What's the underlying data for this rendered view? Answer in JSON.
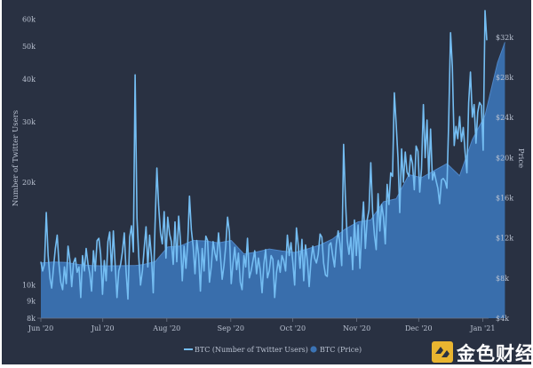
{
  "chart_data": {
    "type": "line",
    "title": "",
    "xlabel": "",
    "ylabel_left": "Number of Twitter Users",
    "ylabel_right": "Price",
    "x_tick_labels": [
      "Jun '20",
      "Jul '20",
      "Aug '20",
      "Sep '20",
      "Oct '20",
      "Nov '20",
      "Dec '20",
      "Jan '21"
    ],
    "left_axis": {
      "scale": "log",
      "ylim": [
        8000,
        65000
      ],
      "ticks": [
        8000,
        9000,
        10000,
        20000,
        30000,
        40000,
        50000,
        60000
      ],
      "tick_labels": [
        "8k",
        "9k",
        "10k",
        "20k",
        "30k",
        "40k",
        "50k",
        "60k"
      ]
    },
    "right_axis": {
      "scale": "linear",
      "ylim": [
        4000,
        35000
      ],
      "ticks": [
        4000,
        8000,
        12000,
        16000,
        20000,
        24000,
        28000,
        32000
      ],
      "tick_labels": [
        "$4k",
        "$8k",
        "$12k",
        "$16k",
        "$20k",
        "$24k",
        "$28k",
        "$32k"
      ]
    },
    "series": [
      {
        "name": "BTC (Number of Twitter Users)",
        "axis": "left",
        "style": "line",
        "color": "#74bdf2",
        "values": [
          11700,
          11000,
          11500,
          16300,
          12200,
          10500,
          9800,
          11300,
          12800,
          14000,
          11500,
          10200,
          9700,
          11300,
          10100,
          13000,
          11800,
          9900,
          11600,
          12000,
          10900,
          11300,
          9200,
          12200,
          11000,
          12800,
          11500,
          10800,
          9600,
          12600,
          11000,
          13500,
          13700,
          12300,
          9400,
          11800,
          10300,
          13400,
          14300,
          11000,
          14400,
          11400,
          9200,
          11000,
          11500,
          12500,
          14200,
          11000,
          9100,
          13800,
          14900,
          12500,
          41200,
          15700,
          12100,
          10000,
          11000,
          12800,
          14800,
          11300,
          14000,
          12100,
          9500,
          15200,
          22000,
          17000,
          14200,
          13200,
          16400,
          12000,
          15800,
          14100,
          13400,
          11500,
          15300,
          11700,
          15900,
          13500,
          10300,
          13000,
          11200,
          13200,
          18200,
          14500,
          13000,
          10800,
          13500,
          12300,
          9600,
          12800,
          11000,
          13900,
          13500,
          10200,
          11300,
          13400,
          12400,
          11800,
          14200,
          12300,
          10400,
          11400,
          13000,
          15800,
          14300,
          10100,
          11600,
          12900,
          11100,
          12400,
          10200,
          9700,
          12200,
          11300,
          13700,
          10500,
          11000,
          11800,
          12600,
          10800,
          12000,
          11100,
          9500,
          11500,
          12700,
          10500,
          11000,
          12200,
          11900,
          9200,
          10900,
          11800,
          10900,
          12200,
          11800,
          11000,
          14000,
          12200,
          13300,
          11600,
          10000,
          14700,
          13000,
          11200,
          13600,
          10300,
          13100,
          11800,
          9900,
          11800,
          13000,
          12000,
          11600,
          12300,
          14100,
          13800,
          11600,
          10700,
          10600,
          13100,
          13300,
          12200,
          11300,
          13200,
          14400,
          13200,
          11400,
          25800,
          18000,
          13500,
          12300,
          13800,
          11100,
          15500,
          12200,
          15000,
          11200,
          14500,
          17500,
          12800,
          15500,
          16600,
          22800,
          16500,
          14000,
          12700,
          18500,
          14400,
          17200,
          15800,
          13200,
          19700,
          17200,
          21300,
          20800,
          36500,
          29500,
          23600,
          16300,
          25000,
          20000,
          24500,
          21400,
          20800,
          24000,
          22700,
          19000,
          25500,
          24600,
          18700,
          21900,
          33700,
          23600,
          30400,
          20500,
          28600,
          20300,
          21400,
          20200,
          19200,
          17300,
          20300,
          20500,
          20100,
          19200,
          30100,
          54700,
          43500,
          25600,
          29100,
          26800,
          31100,
          26300,
          28900,
          24600,
          21300,
          34200,
          42000,
          31000,
          33700,
          26000,
          32000,
          34200,
          33500,
          24800,
          63500,
          52000
        ]
      },
      {
        "name": "BTC (Price)",
        "axis": "right",
        "style": "area",
        "color": "#3b73b5",
        "x": [
          0,
          7,
          14,
          21,
          28,
          35,
          42,
          49,
          52,
          56,
          63,
          70,
          77,
          84,
          91,
          98,
          105,
          112,
          119,
          126,
          133,
          140,
          147,
          154,
          161,
          168,
          175,
          182,
          189,
          196,
          203,
          210,
          217,
          224,
          231,
          238,
          245,
          248,
          252,
          256
        ],
        "values": [
          9500,
          9600,
          9550,
          9350,
          9250,
          9220,
          9230,
          9250,
          9250,
          9330,
          9630,
          11100,
          11200,
          11750,
          11700,
          11500,
          11750,
          10400,
          10600,
          10900,
          10700,
          10550,
          10900,
          11300,
          11900,
          12900,
          13600,
          13800,
          15600,
          15900,
          18300,
          18000,
          18700,
          19400,
          18200,
          21800,
          24200,
          26500,
          29500,
          31500
        ]
      }
    ],
    "legend": {
      "position": "bottom",
      "entries": [
        "BTC (Number of Twitter Users)",
        "BTC (Price)"
      ]
    }
  },
  "watermark": {
    "text": "金色财经",
    "color": "#ffffff",
    "logo_color": "#e9b530"
  }
}
